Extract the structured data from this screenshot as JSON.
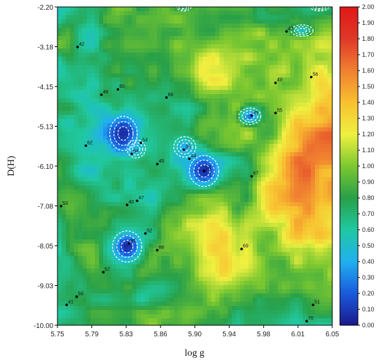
{
  "chart_data": {
    "type": "heatmap",
    "title": "",
    "xlabel": "log g",
    "ylabel": "D(H)",
    "xlim": [
      5.75,
      6.05
    ],
    "ylim": [
      -10.0,
      -2.2
    ],
    "x_ticks": [
      "5.75",
      "5.79",
      "5.83",
      "5.86",
      "5.90",
      "5.94",
      "5.98",
      "6.01",
      "6.05"
    ],
    "y_ticks": [
      "-2.20",
      "-3.18",
      "-4.15",
      "-5.13",
      "-6.10",
      "-7.08",
      "-8.05",
      "-9.03",
      "-10.00"
    ],
    "colorbar": {
      "min": 0.0,
      "max": 2.0,
      "ticks": [
        "0.00",
        "0.10",
        "0.20",
        "0.30",
        "0.40",
        "0.50",
        "0.60",
        "0.70",
        "0.80",
        "0.90",
        "1.00",
        "1.10",
        "1.20",
        "1.30",
        "1.40",
        "1.50",
        "1.60",
        "1.70",
        "1.80",
        "1.90",
        "2.00"
      ]
    },
    "color_ramp": [
      "#1a1a8c",
      "#1a5adc",
      "#20b0f0",
      "#20c8a0",
      "#28a048",
      "#7cc830",
      "#f0f040",
      "#f8c030",
      "#f08030",
      "#e03828",
      "#e01818"
    ],
    "points": [
      {
        "label": "42",
        "x": 5.772,
        "y": -3.18
      },
      {
        "label": "43",
        "x": 6.0,
        "y": -2.8
      },
      {
        "label": "48",
        "x": 5.798,
        "y": -4.35
      },
      {
        "label": "60",
        "x": 5.816,
        "y": -4.22
      },
      {
        "label": "68",
        "x": 5.869,
        "y": -4.42
      },
      {
        "label": "49",
        "x": 5.988,
        "y": -4.06
      },
      {
        "label": "56",
        "x": 6.027,
        "y": -3.92
      },
      {
        "label": "55",
        "x": 5.988,
        "y": -4.8
      },
      {
        "label": "39",
        "x": 5.962,
        "y": -4.86
      },
      {
        "label": "62",
        "x": 5.781,
        "y": -5.6
      },
      {
        "label": "54",
        "x": 5.841,
        "y": -5.53
      },
      {
        "label": "64",
        "x": 5.831,
        "y": -5.8
      },
      {
        "label": "35",
        "x": 5.888,
        "y": -5.7
      },
      {
        "label": "44",
        "x": 5.894,
        "y": -5.92
      },
      {
        "label": "45",
        "x": 5.859,
        "y": -6.05
      },
      {
        "label": "34",
        "x": 5.91,
        "y": -6.22
      },
      {
        "label": "67",
        "x": 5.962,
        "y": -6.35
      },
      {
        "label": "53",
        "x": 5.754,
        "y": -7.08
      },
      {
        "label": "40",
        "x": 5.826,
        "y": -7.05
      },
      {
        "label": "47",
        "x": 5.837,
        "y": -6.95
      },
      {
        "label": "52",
        "x": 5.846,
        "y": -7.75
      },
      {
        "label": "36",
        "x": 5.828,
        "y": -8.0
      },
      {
        "label": "66",
        "x": 5.859,
        "y": -8.16
      },
      {
        "label": "69",
        "x": 5.951,
        "y": -8.13
      },
      {
        "label": "57",
        "x": 5.8,
        "y": -8.7
      },
      {
        "label": "50",
        "x": 5.771,
        "y": -9.3
      },
      {
        "label": "41",
        "x": 5.76,
        "y": -9.5
      },
      {
        "label": "51",
        "x": 6.029,
        "y": -9.5
      },
      {
        "label": "70",
        "x": 6.022,
        "y": -9.9
      }
    ],
    "low_regions": [
      {
        "x": 5.822,
        "y": -5.3,
        "depth": 0.05,
        "rx": 0.015,
        "ry": 0.42
      },
      {
        "x": 5.836,
        "y": -5.68,
        "depth": 0.45,
        "rx": 0.01,
        "ry": 0.22
      },
      {
        "x": 5.889,
        "y": -5.63,
        "depth": 0.4,
        "rx": 0.012,
        "ry": 0.25
      },
      {
        "x": 5.91,
        "y": -6.22,
        "depth": 0.05,
        "rx": 0.016,
        "ry": 0.38
      },
      {
        "x": 5.96,
        "y": -4.88,
        "depth": 0.25,
        "rx": 0.012,
        "ry": 0.2
      },
      {
        "x": 5.826,
        "y": -8.07,
        "depth": 0.05,
        "rx": 0.016,
        "ry": 0.38
      },
      {
        "x": 6.017,
        "y": -2.78,
        "depth": 0.5,
        "rx": 0.012,
        "ry": 0.14
      },
      {
        "x": 5.888,
        "y": -2.2,
        "depth": 0.7,
        "rx": 0.008,
        "ry": 0.1
      },
      {
        "x": 6.036,
        "y": -2.2,
        "depth": 0.7,
        "rx": 0.01,
        "ry": 0.1
      }
    ]
  }
}
